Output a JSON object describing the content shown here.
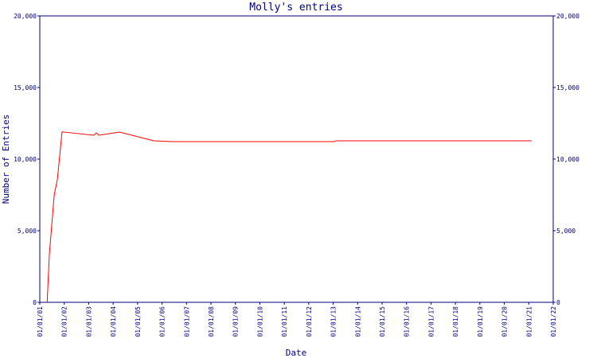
{
  "chart_data": {
    "type": "line",
    "title": "Molly's entries",
    "x_label": "Date",
    "y_label": "Number of Entries",
    "x": [
      2001.3,
      2001.39,
      2001.59,
      2001.72,
      2001.91,
      2002.3,
      2003.21,
      2003.31,
      2003.41,
      2004.26,
      2005.66,
      2006.37,
      2013.05,
      2013.11,
      2021.12
    ],
    "values": [
      0,
      3333,
      7500,
      8600,
      11900,
      11830,
      11670,
      11830,
      11670,
      11890,
      11280,
      11220,
      11220,
      11280,
      11280
    ],
    "color": "#ff0000",
    "xlim": [
      2001,
      2022
    ],
    "xticks": [
      {
        "value": 2001,
        "label": "01/01/01"
      },
      {
        "value": 2002,
        "label": "01/01/02"
      },
      {
        "value": 2003,
        "label": "01/01/03"
      },
      {
        "value": 2004,
        "label": "01/01/04"
      },
      {
        "value": 2005,
        "label": "01/01/05"
      },
      {
        "value": 2006,
        "label": "01/01/06"
      },
      {
        "value": 2007,
        "label": "01/01/07"
      },
      {
        "value": 2008,
        "label": "01/01/08"
      },
      {
        "value": 2009,
        "label": "01/01/09"
      },
      {
        "value": 2010,
        "label": "01/01/10"
      },
      {
        "value": 2011,
        "label": "01/01/11"
      },
      {
        "value": 2012,
        "label": "01/01/12"
      },
      {
        "value": 2013,
        "label": "01/01/13"
      },
      {
        "value": 2014,
        "label": "01/01/14"
      },
      {
        "value": 2015,
        "label": "01/01/15"
      },
      {
        "value": 2016,
        "label": "01/01/16"
      },
      {
        "value": 2017,
        "label": "01/01/17"
      },
      {
        "value": 2018,
        "label": "01/01/18"
      },
      {
        "value": 2019,
        "label": "01/01/19"
      },
      {
        "value": 2020,
        "label": "01/01/20"
      },
      {
        "value": 2021,
        "label": "01/01/21"
      },
      {
        "value": 2022,
        "label": "01/01/22"
      }
    ],
    "ylim": [
      0,
      20000
    ],
    "yticks": [
      0,
      {
        "value": 5000,
        "label": "5,000"
      },
      {
        "value": 10000,
        "label": "10,000"
      },
      {
        "value": 15000,
        "label": "15,000"
      },
      {
        "value": 20000,
        "label": "20,000"
      }
    ]
  }
}
